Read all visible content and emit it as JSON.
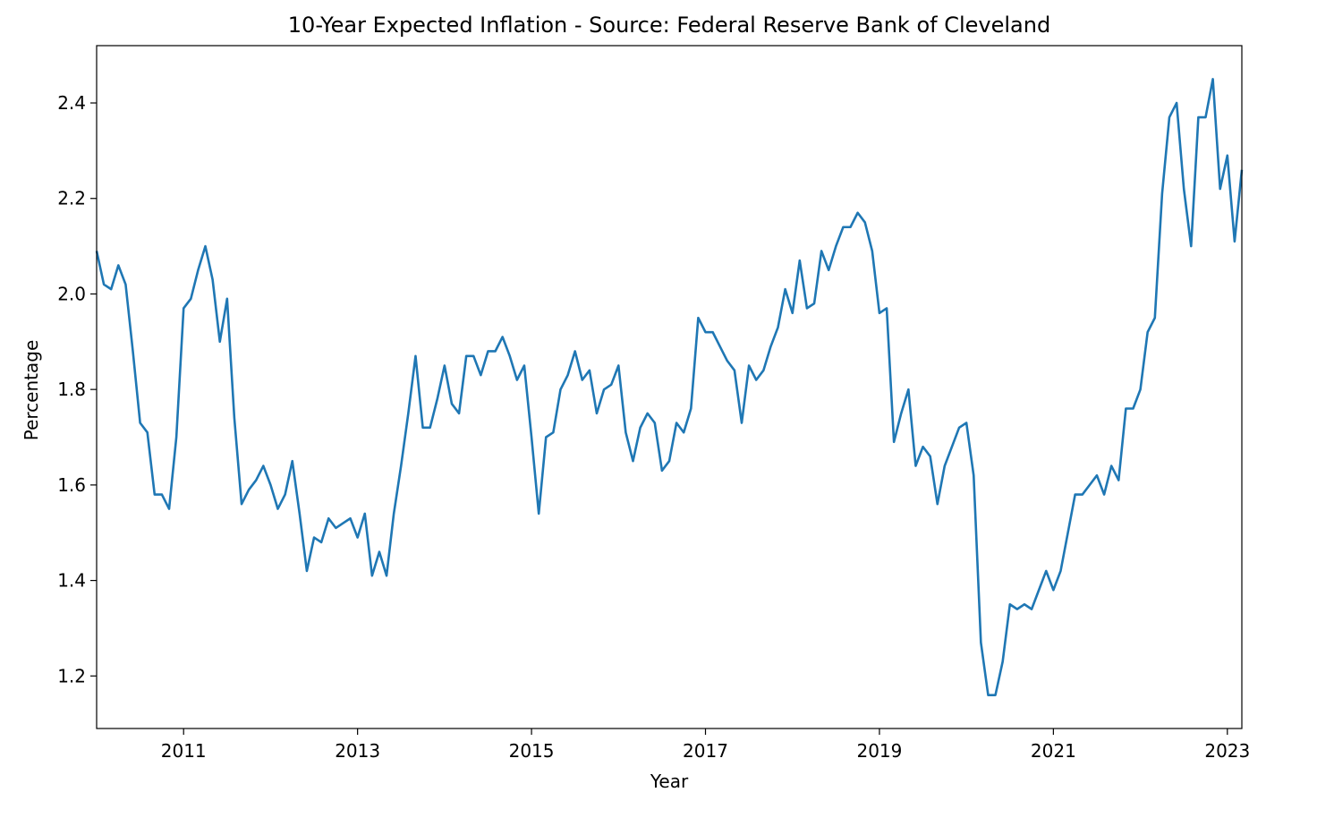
{
  "chart_data": {
    "type": "line",
    "title": "10-Year Expected Inflation - Source: Federal Reserve Bank of Cleveland",
    "xlabel": "Year",
    "ylabel": "Percentage",
    "xlim": [
      "2010-01",
      "2023-03"
    ],
    "ylim": [
      1.09,
      2.52
    ],
    "x_ticks": [
      "2011",
      "2013",
      "2015",
      "2017",
      "2019",
      "2021",
      "2023"
    ],
    "y_ticks": [
      "1.2",
      "1.4",
      "1.6",
      "1.8",
      "2.0",
      "2.2",
      "2.4"
    ],
    "grid": false,
    "legend": "none",
    "series": [
      {
        "color": "#1f77b4",
        "x": [
          "2010-01",
          "2010-02",
          "2010-03",
          "2010-04",
          "2010-05",
          "2010-06",
          "2010-07",
          "2010-08",
          "2010-09",
          "2010-10",
          "2010-11",
          "2010-12",
          "2011-01",
          "2011-02",
          "2011-03",
          "2011-04",
          "2011-05",
          "2011-06",
          "2011-07",
          "2011-08",
          "2011-09",
          "2011-10",
          "2011-11",
          "2011-12",
          "2012-01",
          "2012-02",
          "2012-03",
          "2012-04",
          "2012-05",
          "2012-06",
          "2012-07",
          "2012-08",
          "2012-09",
          "2012-10",
          "2012-11",
          "2012-12",
          "2013-01",
          "2013-02",
          "2013-03",
          "2013-04",
          "2013-05",
          "2013-06",
          "2013-07",
          "2013-08",
          "2013-09",
          "2013-10",
          "2013-11",
          "2013-12",
          "2014-01",
          "2014-02",
          "2014-03",
          "2014-04",
          "2014-05",
          "2014-06",
          "2014-07",
          "2014-08",
          "2014-09",
          "2014-10",
          "2014-11",
          "2014-12",
          "2015-01",
          "2015-02",
          "2015-03",
          "2015-04",
          "2015-05",
          "2015-06",
          "2015-07",
          "2015-08",
          "2015-09",
          "2015-10",
          "2015-11",
          "2015-12",
          "2016-01",
          "2016-02",
          "2016-03",
          "2016-04",
          "2016-05",
          "2016-06",
          "2016-07",
          "2016-08",
          "2016-09",
          "2016-10",
          "2016-11",
          "2016-12",
          "2017-01",
          "2017-02",
          "2017-03",
          "2017-04",
          "2017-05",
          "2017-06",
          "2017-07",
          "2017-08",
          "2017-09",
          "2017-10",
          "2017-11",
          "2017-12",
          "2018-01",
          "2018-02",
          "2018-03",
          "2018-04",
          "2018-05",
          "2018-06",
          "2018-07",
          "2018-08",
          "2018-09",
          "2018-10",
          "2018-11",
          "2018-12",
          "2019-01",
          "2019-02",
          "2019-03",
          "2019-04",
          "2019-05",
          "2019-06",
          "2019-07",
          "2019-08",
          "2019-09",
          "2019-10",
          "2019-11",
          "2019-12",
          "2020-01",
          "2020-02",
          "2020-03",
          "2020-04",
          "2020-05",
          "2020-06",
          "2020-07",
          "2020-08",
          "2020-09",
          "2020-10",
          "2020-11",
          "2020-12",
          "2021-01",
          "2021-02",
          "2021-03",
          "2021-04",
          "2021-05",
          "2021-06",
          "2021-07",
          "2021-08",
          "2021-09",
          "2021-10",
          "2021-11",
          "2021-12",
          "2022-01",
          "2022-02",
          "2022-03",
          "2022-04",
          "2022-05",
          "2022-06",
          "2022-07",
          "2022-08",
          "2022-09",
          "2022-10",
          "2022-11",
          "2022-12",
          "2023-01",
          "2023-02",
          "2023-03"
        ],
        "values": [
          2.09,
          2.02,
          2.01,
          2.06,
          2.02,
          1.88,
          1.73,
          1.71,
          1.58,
          1.58,
          1.55,
          1.7,
          1.97,
          1.99,
          2.05,
          2.1,
          2.03,
          1.9,
          1.99,
          1.74,
          1.56,
          1.59,
          1.61,
          1.64,
          1.6,
          1.55,
          1.58,
          1.65,
          1.54,
          1.42,
          1.49,
          1.48,
          1.53,
          1.51,
          1.52,
          1.53,
          1.49,
          1.54,
          1.41,
          1.46,
          1.41,
          1.54,
          1.64,
          1.75,
          1.87,
          1.72,
          1.72,
          1.78,
          1.85,
          1.77,
          1.75,
          1.87,
          1.87,
          1.83,
          1.88,
          1.88,
          1.91,
          1.87,
          1.82,
          1.85,
          1.7,
          1.54,
          1.7,
          1.71,
          1.8,
          1.83,
          1.88,
          1.82,
          1.84,
          1.75,
          1.8,
          1.81,
          1.85,
          1.71,
          1.65,
          1.72,
          1.75,
          1.73,
          1.63,
          1.65,
          1.73,
          1.71,
          1.76,
          1.95,
          1.92,
          1.92,
          1.89,
          1.86,
          1.84,
          1.73,
          1.85,
          1.82,
          1.84,
          1.89,
          1.93,
          2.01,
          1.96,
          2.07,
          1.97,
          1.98,
          2.09,
          2.05,
          2.1,
          2.14,
          2.14,
          2.17,
          2.15,
          2.09,
          1.96,
          1.97,
          1.69,
          1.75,
          1.8,
          1.64,
          1.68,
          1.66,
          1.56,
          1.64,
          1.68,
          1.72,
          1.73,
          1.62,
          1.27,
          1.16,
          1.16,
          1.23,
          1.35,
          1.34,
          1.35,
          1.34,
          1.38,
          1.42,
          1.38,
          1.42,
          1.5,
          1.58,
          1.58,
          1.6,
          1.62,
          1.58,
          1.64,
          1.61,
          1.76,
          1.76,
          1.8,
          1.92,
          1.95,
          2.21,
          2.37,
          2.4,
          2.22,
          2.1,
          2.37,
          2.37,
          2.45,
          2.22,
          2.29,
          2.11,
          2.26
        ]
      }
    ]
  }
}
